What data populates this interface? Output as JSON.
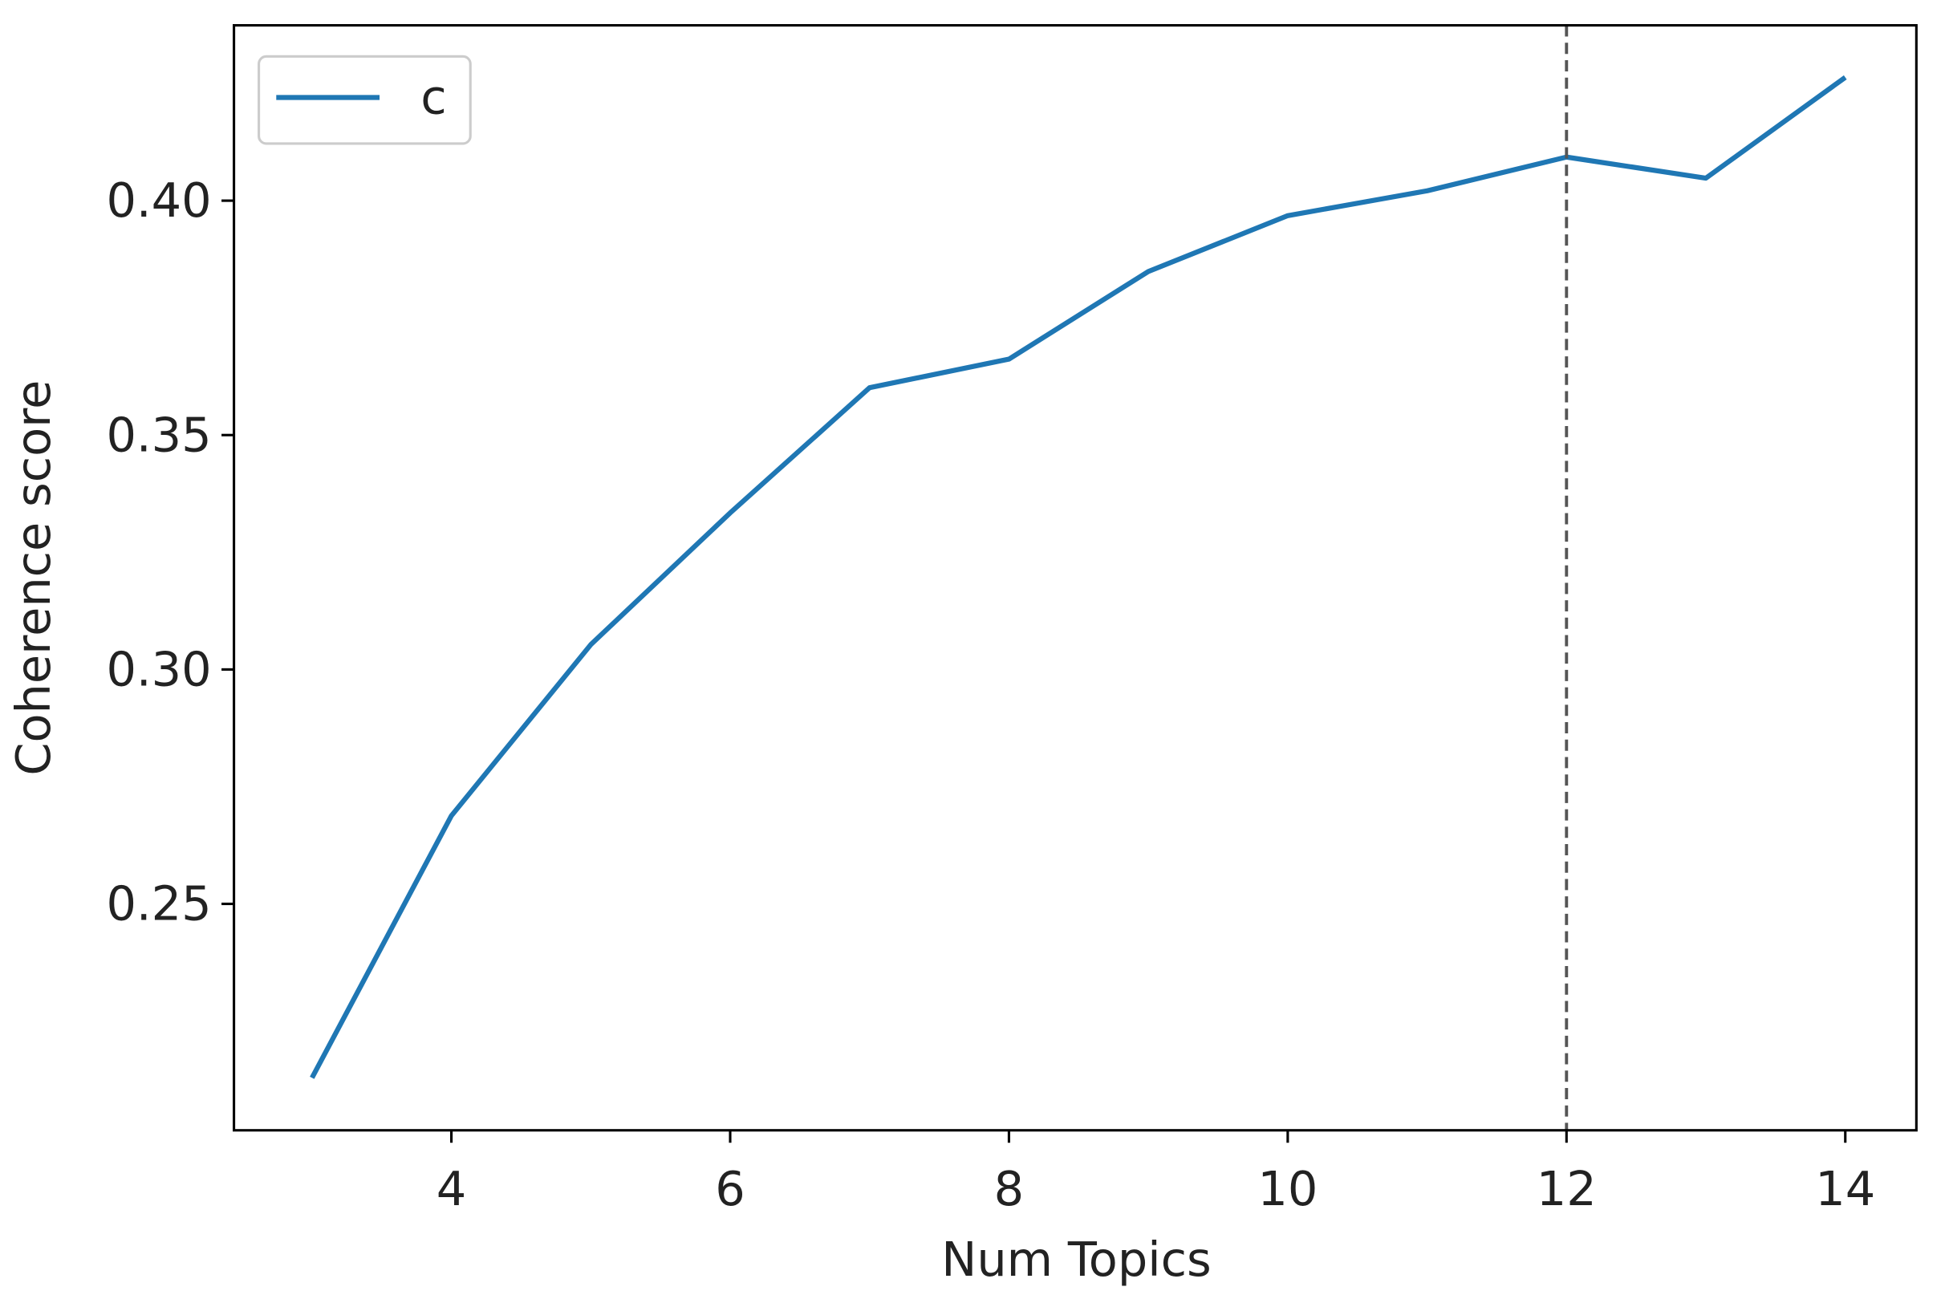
{
  "chart_data": {
    "type": "line",
    "x_label": "Num Topics",
    "y_label": "Coherence score",
    "x": [
      3,
      4,
      5,
      6,
      7,
      8,
      9,
      10,
      11,
      12,
      13,
      14
    ],
    "series": [
      {
        "name": "c",
        "color": "#1f77b4",
        "values": [
          0.2129,
          0.2688,
          0.3053,
          0.3334,
          0.3601,
          0.3662,
          0.3849,
          0.3968,
          0.4021,
          0.4093,
          0.4048,
          0.4263
        ]
      }
    ],
    "xlim": [
      2.44,
      14.51
    ],
    "ylim": [
      0.2017,
      0.4374
    ],
    "xticks": [
      4,
      6,
      8,
      10,
      12,
      14
    ],
    "yticks": [
      {
        "value": 0.25,
        "label": "0.25"
      },
      {
        "value": 0.3,
        "label": "0.30"
      },
      {
        "value": 0.35,
        "label": "0.35"
      },
      {
        "value": 0.4,
        "label": "0.40"
      }
    ],
    "vline": 12,
    "vline_color": "#555555",
    "legend": "upper left",
    "grid": false
  }
}
